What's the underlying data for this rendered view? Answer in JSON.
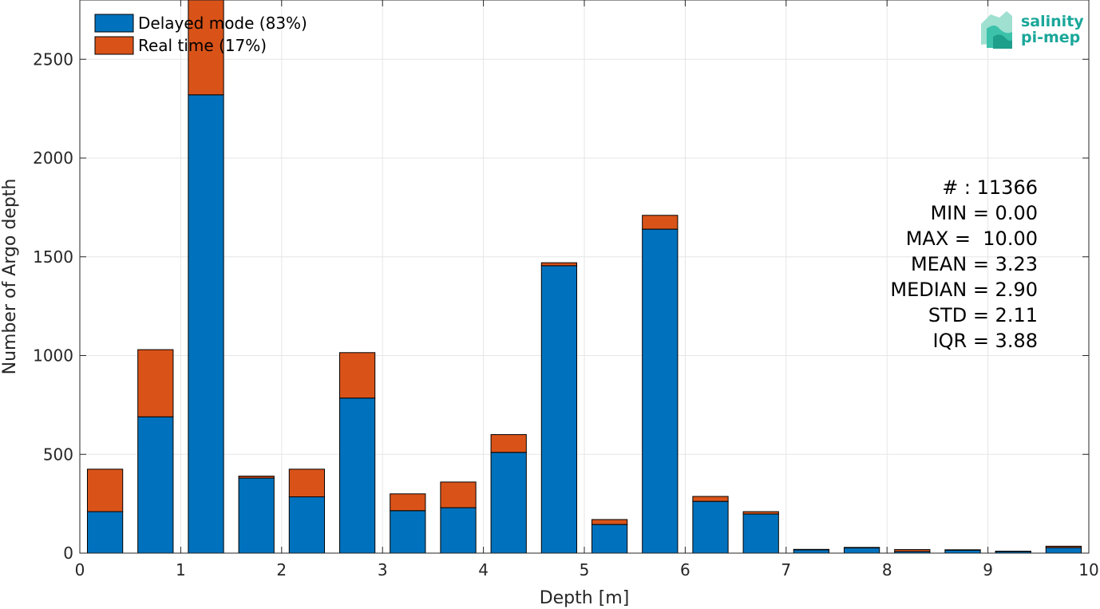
{
  "chart_data": {
    "type": "bar",
    "stacked": true,
    "xlabel": "Depth [m]",
    "ylabel": "Number of Argo depth",
    "xlim": [
      0,
      10
    ],
    "ylim": [
      0,
      2800
    ],
    "xticks": [
      "0",
      "1",
      "2",
      "3",
      "4",
      "5",
      "6",
      "7",
      "8",
      "9",
      "10"
    ],
    "yticks": [
      "0",
      "500",
      "1000",
      "1500",
      "2000",
      "2500"
    ],
    "grid": true,
    "legend_position": "top-left",
    "bin_width": 0.5,
    "x": [
      0.25,
      0.75,
      1.25,
      1.75,
      2.25,
      2.75,
      3.25,
      3.75,
      4.25,
      4.75,
      5.25,
      5.75,
      6.25,
      6.75,
      7.25,
      7.75,
      8.25,
      8.75,
      9.25,
      9.75
    ],
    "series": [
      {
        "name": "Delayed mode (83%)",
        "color": "#0072bd",
        "values": [
          210,
          690,
          2320,
          380,
          285,
          785,
          215,
          230,
          510,
          1455,
          145,
          1640,
          262,
          198,
          17,
          27,
          8,
          15,
          8,
          28
        ]
      },
      {
        "name": "Real time (17%)",
        "color": "#d95319",
        "values": [
          215,
          340,
          495,
          10,
          140,
          230,
          85,
          130,
          90,
          15,
          25,
          70,
          25,
          12,
          2,
          2,
          10,
          2,
          2,
          7
        ]
      }
    ]
  },
  "stats": [
    "# : 11366",
    "MIN = 0.00",
    "MAX =  10.00",
    "MEAN = 3.23",
    "MEDIAN = 2.90",
    "STD = 2.11",
    "IQR = 3.88"
  ],
  "logo": {
    "line1": "salinity",
    "line2": "pi-mep"
  }
}
